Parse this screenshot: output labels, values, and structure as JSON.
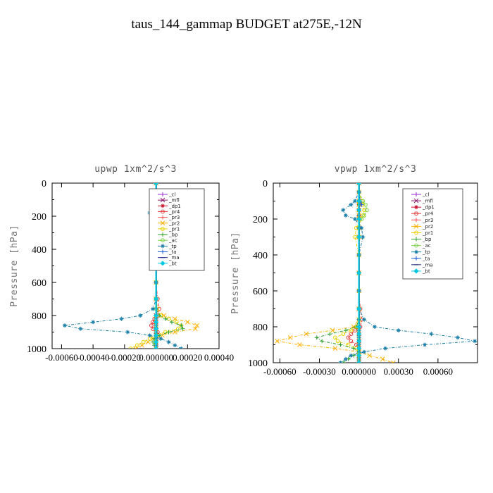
{
  "figure": {
    "title": "taus_144_gammap  BUDGET at275E,-12N"
  },
  "chart_data": [
    {
      "type": "line",
      "title": "upwp   1xm^2/s^3",
      "ylabel": "Pressure [hPa]",
      "ylim": [
        1000,
        0
      ],
      "yticks": [
        "0",
        "200",
        "400",
        "600",
        "800",
        "1000"
      ],
      "xlim": [
        -0.00066,
        0.0004
      ],
      "xtick_values": [
        -0.0006,
        -0.0004,
        -0.0002,
        0.0,
        0.0002,
        0.0004
      ],
      "xtick_labels": [
        "-0.00060",
        "-0.00040",
        "-0.00020",
        "0.000000",
        "0.00020",
        "0.00040"
      ],
      "legend_position": "upper-right",
      "y": [
        0,
        50,
        100,
        120,
        150,
        180,
        200,
        250,
        300,
        400,
        500,
        600,
        700,
        760,
        800,
        820,
        840,
        860,
        880,
        900,
        920,
        940,
        960,
        980,
        1000
      ],
      "series": [
        {
          "name": "_cl",
          "color": "#9b30d0",
          "marker": "+",
          "values": [
            0,
            0,
            0,
            0,
            0,
            0,
            0,
            0,
            0,
            0,
            0,
            0,
            0,
            0,
            0,
            0,
            0,
            0,
            0,
            0,
            0,
            0,
            0,
            0,
            0
          ]
        },
        {
          "name": "_mfl",
          "color": "#8b1a6b",
          "marker": "x",
          "values": [
            0,
            0,
            0,
            0,
            0,
            0,
            0,
            0,
            0,
            0,
            0,
            0,
            0,
            0,
            0,
            0,
            0,
            0,
            0,
            0,
            0,
            0,
            0,
            0,
            0
          ]
        },
        {
          "name": "_dp1",
          "color": "#c8102e",
          "marker": "*",
          "values": [
            0,
            0,
            0,
            0,
            0,
            0,
            0,
            0,
            0,
            0,
            0,
            0,
            0,
            0,
            0,
            0,
            0,
            0,
            0,
            0,
            0,
            0,
            0,
            0,
            0
          ]
        },
        {
          "name": "_pr4",
          "color": "#e83a3a",
          "marker": "o",
          "values": [
            0,
            0,
            0,
            0,
            0,
            0,
            0,
            0,
            0,
            0,
            0,
            0,
            1e-05,
            2e-05,
            1e-05,
            -1e-05,
            -2e-05,
            -3e-05,
            -2e-05,
            1e-05,
            0,
            0,
            0,
            0,
            0
          ]
        },
        {
          "name": "_pr3",
          "color": "#ff5c5c",
          "marker": "+",
          "values": [
            0,
            0,
            0,
            0,
            0,
            0,
            0,
            0,
            0,
            0,
            0,
            0,
            0,
            0,
            0,
            0,
            0,
            0,
            0,
            0,
            0,
            0,
            0,
            0,
            0
          ]
        },
        {
          "name": "_pr2",
          "color": "#ffb000",
          "marker": "x",
          "values": [
            0,
            0,
            0,
            0,
            0,
            0,
            0,
            0,
            0,
            0,
            0,
            0,
            0,
            1e-05,
            5e-05,
            0.00012,
            0.0002,
            0.00026,
            0.00025,
            0.00012,
            4e-05,
            -2e-05,
            -5e-05,
            -9e-05,
            -0.00013
          ]
        },
        {
          "name": "_pr1",
          "color": "#e8d000",
          "marker": "o",
          "values": [
            0,
            0,
            -2e-05,
            -3e-05,
            -1e-05,
            0,
            0,
            0,
            0,
            0,
            0,
            0,
            0,
            0,
            3e-05,
            8e-05,
            0.00013,
            0.00016,
            0.00014,
            6e-05,
            0,
            -4e-05,
            -8e-05,
            -0.00012,
            -0.00016
          ]
        },
        {
          "name": "_bp",
          "color": "#2ca02c",
          "marker": "+",
          "values": [
            0,
            0,
            0,
            0,
            0,
            0,
            0,
            0,
            0,
            0,
            0,
            0,
            0,
            0,
            2e-05,
            6e-05,
            0.0001,
            0.00016,
            0.00017,
            8e-05,
            2e-05,
            -1e-05,
            -2e-05,
            -1e-05,
            0
          ]
        },
        {
          "name": "_ac",
          "color": "#7fd24a",
          "marker": "o",
          "values": [
            0,
            0,
            -2e-05,
            -3e-05,
            -1e-05,
            0,
            0,
            0,
            0,
            0,
            0,
            0,
            0,
            0,
            0,
            0,
            0,
            0,
            0,
            0,
            0,
            0,
            0,
            0,
            0
          ]
        },
        {
          "name": "_tp",
          "color": "#1a7fa6",
          "marker": "*",
          "values": [
            0,
            0,
            4e-05,
            5e-05,
            -2e-05,
            -4e-05,
            0,
            0,
            0,
            0,
            0,
            0,
            0,
            -2e-05,
            -0.0001,
            -0.00022,
            -0.0004,
            -0.00058,
            -0.00048,
            -0.00018,
            -4e-05,
            3e-05,
            8e-05,
            0.00012,
            0.00016
          ]
        },
        {
          "name": "_ta",
          "color": "#1f5fd6",
          "marker": "+",
          "values": [
            0,
            0,
            1e-05,
            2e-05,
            0,
            0,
            0,
            0,
            0,
            0,
            0,
            0,
            0,
            0,
            0,
            0,
            0,
            0,
            0,
            0,
            0,
            0,
            0,
            0,
            0
          ]
        },
        {
          "name": "_ma",
          "color": "#1a2a80",
          "marker": "-",
          "values": [
            0,
            0,
            0,
            0,
            0,
            0,
            0,
            0,
            0,
            0,
            0,
            0,
            0,
            0,
            0,
            0,
            0,
            0,
            0,
            0,
            0,
            0,
            0,
            0,
            0
          ]
        },
        {
          "name": "_bt",
          "color": "#00c8e0",
          "marker": "D",
          "values": [
            0,
            0,
            0,
            0,
            0,
            0,
            0,
            0,
            0,
            0,
            0,
            0,
            0,
            0,
            0,
            0,
            0,
            0,
            0,
            0,
            0,
            0,
            0,
            0,
            0
          ]
        }
      ]
    },
    {
      "type": "line",
      "title": "vpwp   1xm^2/s^3",
      "ylabel": "Pressure [hPa]",
      "ylim": [
        1000,
        0
      ],
      "yticks": [
        "0",
        "200",
        "400",
        "600",
        "800",
        "1000"
      ],
      "xlim": [
        -0.00065,
        0.0009
      ],
      "xtick_values": [
        -0.0006,
        -0.0003,
        0.0,
        0.0003,
        0.0006
      ],
      "xtick_labels": [
        "-0.00060",
        "-0.00030",
        "0.000000",
        "0.00030",
        "0.00060"
      ],
      "legend_position": "upper-right",
      "y": [
        0,
        50,
        100,
        120,
        150,
        180,
        200,
        250,
        300,
        400,
        500,
        600,
        700,
        760,
        800,
        820,
        840,
        860,
        880,
        900,
        920,
        940,
        960,
        980,
        1000
      ],
      "series": [
        {
          "name": "_cl",
          "color": "#9b30d0",
          "marker": "+",
          "values": [
            0,
            0,
            0,
            0,
            0,
            0,
            0,
            0,
            0,
            0,
            0,
            0,
            0,
            0,
            0,
            0,
            0,
            0,
            0,
            0,
            0,
            0,
            0,
            0,
            0
          ]
        },
        {
          "name": "_mfl",
          "color": "#8b1a6b",
          "marker": "x",
          "values": [
            0,
            0,
            0,
            0,
            0,
            0,
            0,
            0,
            0,
            0,
            0,
            0,
            0,
            0,
            0,
            0,
            0,
            0,
            0,
            0,
            0,
            0,
            0,
            0,
            0
          ]
        },
        {
          "name": "_dp1",
          "color": "#c8102e",
          "marker": "*",
          "values": [
            0,
            0,
            0,
            0,
            0,
            0,
            0,
            0,
            0,
            0,
            0,
            0,
            0,
            0,
            0,
            0,
            0,
            0,
            0,
            0,
            0,
            0,
            0,
            0,
            0
          ]
        },
        {
          "name": "_pr4",
          "color": "#e83a3a",
          "marker": "o",
          "values": [
            0,
            0,
            0,
            0,
            0,
            0,
            0,
            0,
            0,
            0,
            0,
            0,
            1e-05,
            2e-05,
            1e-05,
            -3e-05,
            -6e-05,
            -8e-05,
            -6e-05,
            -2e-05,
            0,
            0,
            0,
            0,
            0
          ]
        },
        {
          "name": "_pr3",
          "color": "#ff5c5c",
          "marker": "+",
          "values": [
            0,
            0,
            0,
            0,
            0,
            0,
            0,
            0,
            0,
            0,
            0,
            0,
            0,
            0,
            0,
            0,
            0,
            0,
            0,
            0,
            0,
            0,
            0,
            0,
            0
          ]
        },
        {
          "name": "_pr2",
          "color": "#ffb000",
          "marker": "x",
          "values": [
            0,
            0,
            0,
            0,
            0,
            0,
            0,
            0,
            0,
            0,
            0,
            0,
            0,
            0,
            -4e-05,
            -0.0002,
            -0.0004,
            -0.00052,
            -0.00062,
            -0.00045,
            -0.00018,
            0,
            8e-05,
            0.00018,
            0.00026
          ]
        },
        {
          "name": "_pr1",
          "color": "#e8d000",
          "marker": "o",
          "values": [
            0,
            0,
            2e-05,
            3e-05,
            4e-05,
            3e-05,
            2e-05,
            -2e-05,
            -3e-05,
            0,
            0,
            0,
            0,
            0,
            -2e-05,
            -6e-05,
            -0.00012,
            -0.00018,
            -0.00016,
            -8e-05,
            -2e-05,
            0,
            0,
            0,
            0
          ]
        },
        {
          "name": "_bp",
          "color": "#2ca02c",
          "marker": "+",
          "values": [
            0,
            0,
            0,
            0,
            0,
            0,
            0,
            0,
            0,
            0,
            0,
            0,
            0,
            0,
            -2e-05,
            -0.0001,
            -0.00022,
            -0.00032,
            -0.00028,
            -0.00014,
            -4e-05,
            0,
            -4e-05,
            -8e-05,
            -0.00012
          ]
        },
        {
          "name": "_ac",
          "color": "#7fd24a",
          "marker": "o",
          "values": [
            0,
            0,
            3e-05,
            5e-05,
            6e-05,
            4e-05,
            2e-05,
            0,
            0,
            0,
            0,
            0,
            0,
            0,
            0,
            0,
            0,
            0,
            0,
            0,
            0,
            0,
            0,
            0,
            0
          ]
        },
        {
          "name": "_tp",
          "color": "#1a7fa6",
          "marker": "*",
          "values": [
            0,
            0,
            -3e-05,
            -6e-05,
            -0.00012,
            -0.0001,
            -3e-05,
            2e-05,
            3e-05,
            0,
            0,
            0,
            0,
            4e-05,
            0.00012,
            0.0003,
            0.00055,
            0.00075,
            0.00088,
            0.0005,
            0.0002,
            4e-05,
            -6e-05,
            -0.0001,
            -0.00014
          ]
        },
        {
          "name": "_ta",
          "color": "#1f5fd6",
          "marker": "+",
          "values": [
            0,
            0,
            1e-05,
            2e-05,
            0,
            0,
            0,
            0,
            0,
            0,
            0,
            0,
            0,
            0,
            0,
            0,
            0,
            0,
            0,
            0,
            0,
            0,
            0,
            0,
            0
          ]
        },
        {
          "name": "_ma",
          "color": "#1a2a80",
          "marker": "-",
          "values": [
            0,
            0,
            0,
            0,
            0,
            0,
            0,
            0,
            0,
            0,
            0,
            0,
            0,
            0,
            0,
            0,
            0,
            0,
            0,
            0,
            0,
            0,
            0,
            0,
            0
          ]
        },
        {
          "name": "_bt",
          "color": "#00c8e0",
          "marker": "D",
          "values": [
            0,
            0,
            0,
            0,
            0,
            0,
            0,
            0,
            0,
            0,
            0,
            0,
            0,
            0,
            0,
            0,
            0,
            0,
            0,
            0,
            0,
            0,
            0,
            0,
            0
          ]
        }
      ]
    }
  ]
}
